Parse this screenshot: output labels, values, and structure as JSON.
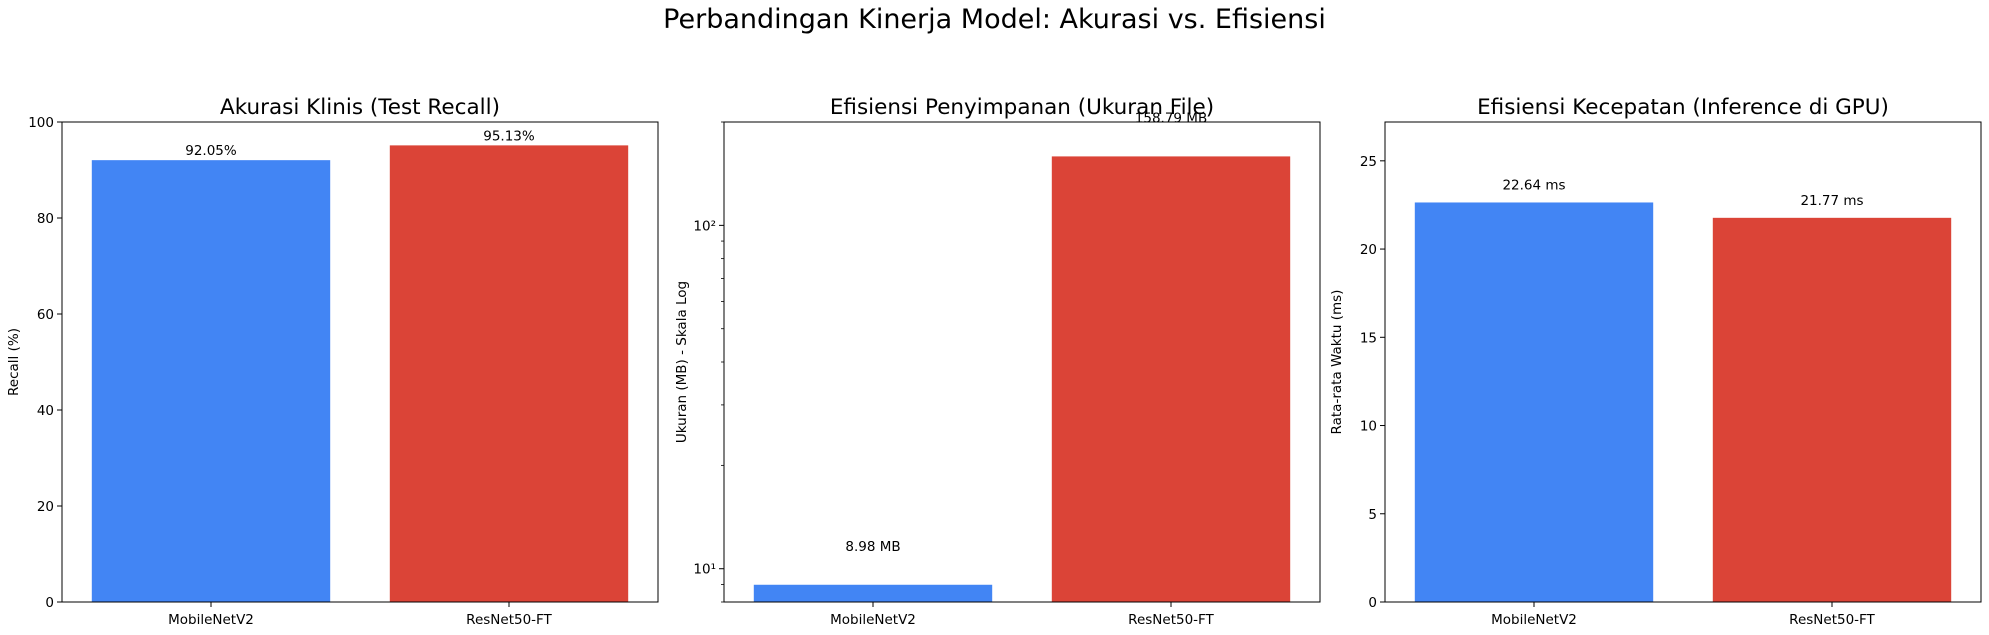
{
  "figure_title": "Perbandingan Kinerja Model: Akurasi vs. Efisiensi",
  "colors": {
    "mobilenet": "#4285F4",
    "resnet": "#DB4437"
  },
  "chart_data": [
    {
      "type": "bar",
      "title": "Akurasi Klinis (Test Recall)",
      "xlabel": "",
      "ylabel": "Recall (%)",
      "categories": [
        "MobileNetV2",
        "ResNet50-FT"
      ],
      "values": [
        92.05,
        95.13
      ],
      "value_labels": [
        "92.05%",
        "95.13%"
      ],
      "ylim": [
        0,
        100
      ],
      "yscale": "linear",
      "yticks": [
        0,
        20,
        40,
        60,
        80,
        100
      ],
      "ytick_labels": [
        "0",
        "20",
        "40",
        "60",
        "80",
        "100"
      ],
      "grid": false
    },
    {
      "type": "bar",
      "title": "Efisiensi Penyimpanan (Ukuran File)",
      "xlabel": "",
      "ylabel": "Ukuran (MB) - Skala Log",
      "categories": [
        "MobileNetV2",
        "ResNet50-FT"
      ],
      "values": [
        8.98,
        158.79
      ],
      "value_labels": [
        "8.98 MB",
        "158.79 MB"
      ],
      "ylim": [
        8,
        200
      ],
      "yscale": "log",
      "yticks": [
        10,
        100
      ],
      "ytick_labels": [
        "10¹",
        "10²"
      ],
      "grid": false
    },
    {
      "type": "bar",
      "title": "Efisiensi Kecepatan (Inference di GPU)",
      "xlabel": "",
      "ylabel": "Rata-rata Waktu (ms)",
      "categories": [
        "MobileNetV2",
        "ResNet50-FT"
      ],
      "values": [
        22.64,
        21.77
      ],
      "value_labels": [
        "22.64 ms",
        "21.77 ms"
      ],
      "ylim": [
        0,
        27.2
      ],
      "yscale": "linear",
      "yticks": [
        0,
        5,
        10,
        15,
        20,
        25
      ],
      "ytick_labels": [
        "0",
        "5",
        "10",
        "15",
        "20",
        "25"
      ],
      "grid": false
    }
  ]
}
